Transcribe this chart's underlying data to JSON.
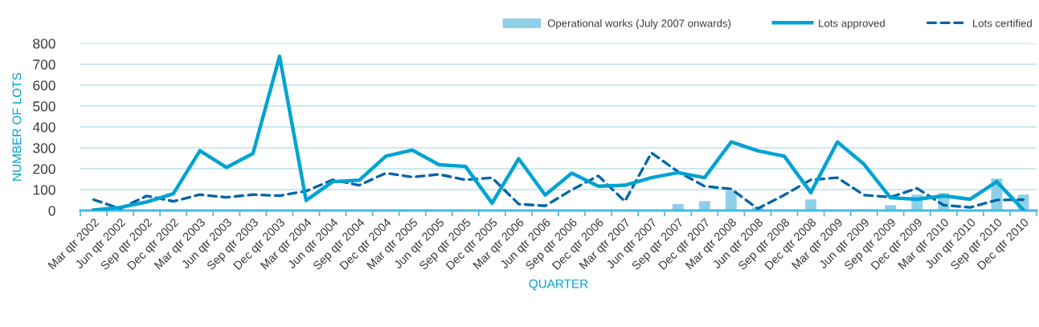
{
  "chart_data": {
    "type": "line",
    "xlabel": "QUARTER",
    "ylabel": "NUMBER OF LOTS",
    "categories": [
      "Mar qtr 2002",
      "Jun qtr 2002",
      "Sep qtr 2002",
      "Dec qtr 2002",
      "Mar qtr 2003",
      "Jun qtr 2003",
      "Sep qtr 2003",
      "Dec qtr 2003",
      "Mar qtr 2004",
      "Jun qtr 2004",
      "Sep qtr 2004",
      "Dec qtr 2004",
      "Mar qtr 2005",
      "Jun qtr 2005",
      "Sep qtr 2005",
      "Dec qtr 2005",
      "Mar qtr 2006",
      "Jun qtr 2006",
      "Sep qtr 2006",
      "Dec qtr 2006",
      "Mar qtr 2007",
      "Jun qtr 2007",
      "Sep qtr 2007",
      "Dec qtr 2007",
      "Mar qtr 2008",
      "Jun qtr 2008",
      "Sep qtr 2008",
      "Dec qtr 2008",
      "Mar qtr 2009",
      "Jun qtr 2009",
      "Sep qtr 2009",
      "Dec qtr 2009",
      "Mar qtr 2010",
      "Jun qtr 2010",
      "Sep qtr 2010",
      "Dec qtr 2010"
    ],
    "series": [
      {
        "name": "Operational works (July 2007 onwards)",
        "type": "bar",
        "color": "#8ed0e8",
        "values": [
          null,
          null,
          null,
          null,
          null,
          null,
          null,
          null,
          null,
          null,
          null,
          null,
          null,
          null,
          null,
          null,
          null,
          null,
          null,
          null,
          null,
          null,
          31,
          45,
          95,
          15,
          null,
          53,
          null,
          6,
          26,
          76,
          84,
          null,
          153,
          76
        ]
      },
      {
        "name": "Lots approved",
        "color": "#00a3d1",
        "line_style": "solid",
        "values": [
          2,
          15,
          41,
          80,
          286,
          206,
          273,
          738,
          48,
          138,
          145,
          260,
          289,
          219,
          211,
          35,
          248,
          74,
          179,
          116,
          121,
          157,
          181,
          157,
          328,
          286,
          260,
          86,
          328,
          222,
          61,
          54,
          70,
          54,
          138,
          3
        ]
      },
      {
        "name": "Lots certified",
        "color": "#0065a8",
        "line_style": "dashed",
        "values": [
          52,
          9,
          70,
          44,
          76,
          63,
          76,
          71,
          93,
          147,
          121,
          179,
          160,
          173,
          147,
          157,
          31,
          22,
          99,
          166,
          44,
          276,
          186,
          116,
          103,
          9,
          74,
          147,
          157,
          74,
          64,
          106,
          26,
          15,
          50,
          52
        ]
      }
    ],
    "ylim": [
      0,
      800
    ],
    "yticks": [
      0,
      100,
      200,
      300,
      400,
      500,
      600,
      700,
      800
    ],
    "grid": "y",
    "legend": "top right"
  }
}
